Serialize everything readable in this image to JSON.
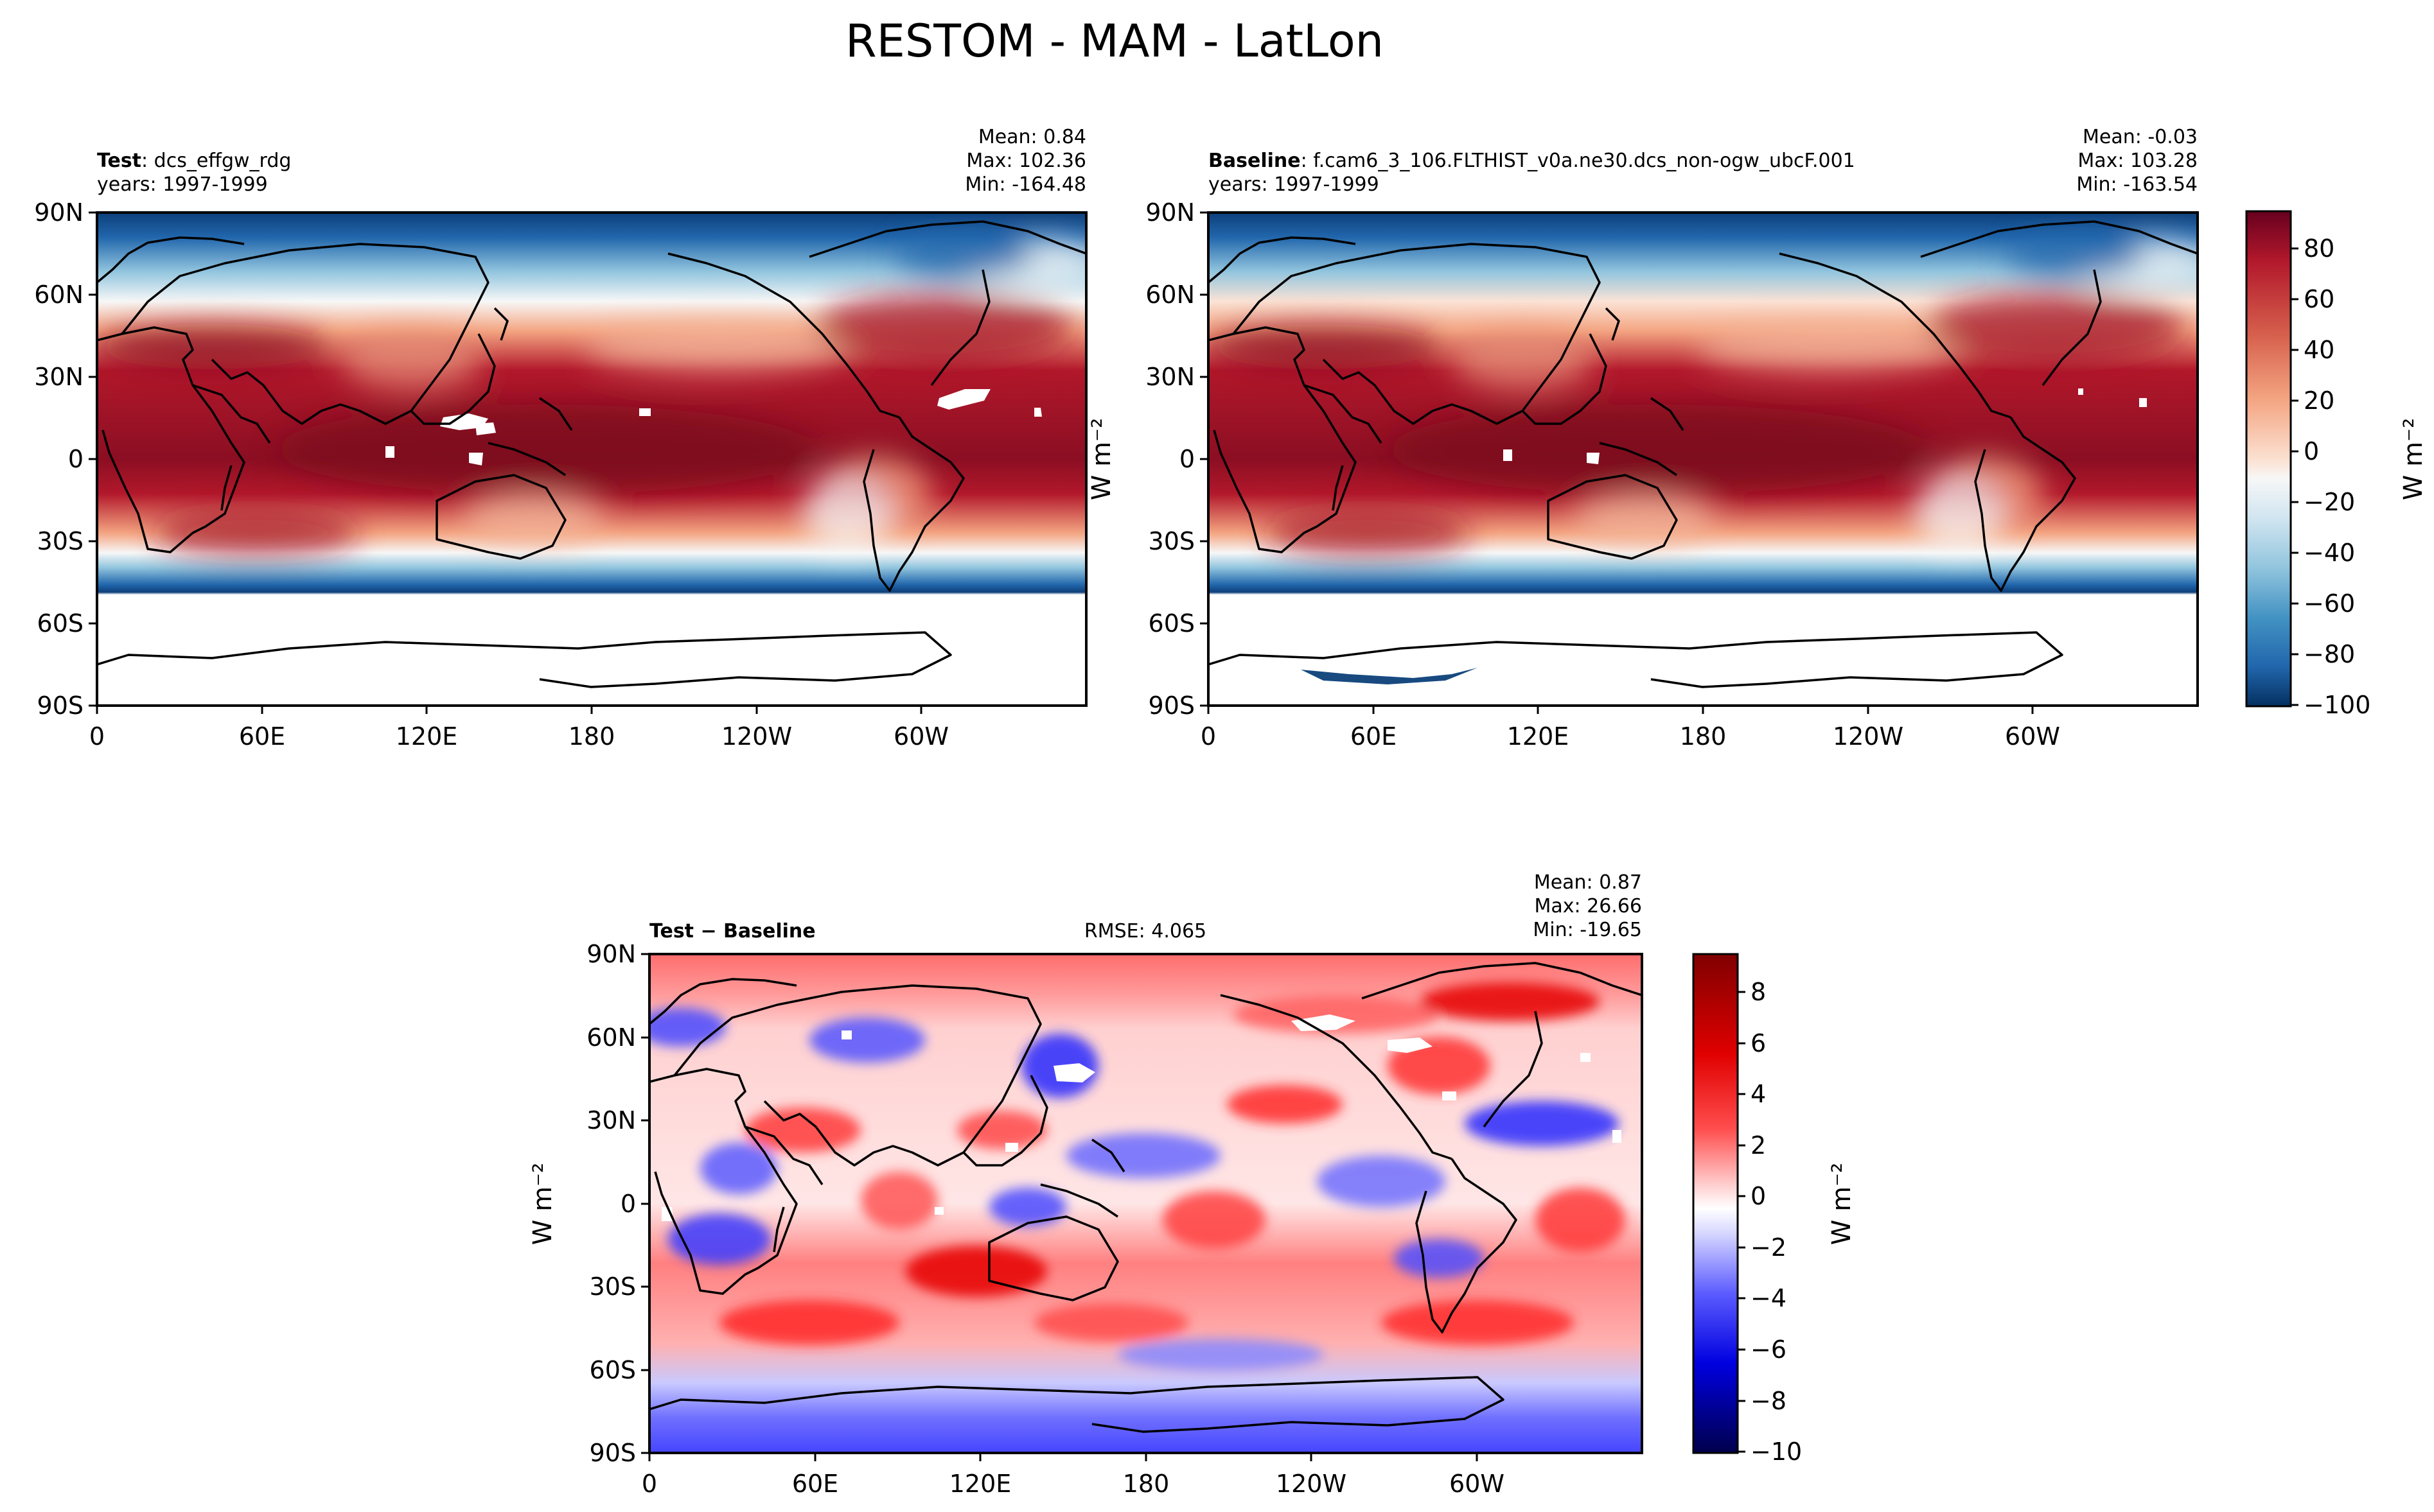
{
  "figure_title": "RESTOM - MAM - LatLon",
  "colors": {
    "warm": "#b2182b",
    "cool": "#2166ac",
    "land_outline": "#000000",
    "missing": "#ffffff"
  },
  "chart_data": [
    {
      "type": "heatmap",
      "panel": "test",
      "label_bold": "Test",
      "label_rest": ": dcs_effgw_rdg",
      "years": "years: 1997-1999",
      "stats": {
        "mean": "Mean:  0.84",
        "max": "Max: 102.36",
        "min": "Min: -164.48"
      },
      "x_ticks": [
        "0",
        "60E",
        "120E",
        "180",
        "120W",
        "60W"
      ],
      "y_ticks": [
        "90N",
        "60N",
        "30N",
        "0",
        "30S",
        "60S",
        "90S"
      ],
      "colormap": "RdBu_r",
      "field": "net top-of-model radiation, max ~+95 near equator, strongly negative poleward of ~45°; missing south of ~50S"
    },
    {
      "type": "heatmap",
      "panel": "baseline",
      "label_bold": "Baseline",
      "label_rest": ": f.cam6_3_106.FLTHIST_v0a.ne30.dcs_non-ogw_ubcF.001",
      "years": "years: 1997-1999",
      "stats": {
        "mean": "Mean: -0.03",
        "max": "Max: 103.28",
        "min": "Min: -163.54"
      },
      "x_ticks": [
        "0",
        "60E",
        "120E",
        "180",
        "120W",
        "60W"
      ],
      "y_ticks": [
        "90N",
        "60N",
        "30N",
        "0",
        "30S",
        "60S",
        "90S"
      ],
      "colormap": "RdBu_r",
      "colorbar": {
        "ylabel": "W m⁻²",
        "ticks": [
          "80",
          "60",
          "40",
          "20",
          "0",
          "−20",
          "−40",
          "−60",
          "−80",
          "−100"
        ],
        "range": [
          -100,
          95
        ]
      }
    },
    {
      "type": "heatmap",
      "panel": "difference",
      "label_bold": "Test − Baseline",
      "rmse": "RMSE: 4.065",
      "stats": {
        "mean": "Mean:  0.87",
        "max": "Max: 26.66",
        "min": "Min: -19.65"
      },
      "x_ticks": [
        "0",
        "60E",
        "120E",
        "180",
        "120W",
        "60W"
      ],
      "y_ticks": [
        "90N",
        "60N",
        "30N",
        "0",
        "30S",
        "60S",
        "90S"
      ],
      "colormap": "seismic",
      "ylabel": "W m⁻²",
      "colorbar": {
        "ylabel": "W m⁻²",
        "ticks": [
          "8",
          "6",
          "4",
          "2",
          "0",
          "−2",
          "−4",
          "−6",
          "−8",
          "−10"
        ],
        "range": [
          -10,
          9.5
        ]
      }
    }
  ]
}
